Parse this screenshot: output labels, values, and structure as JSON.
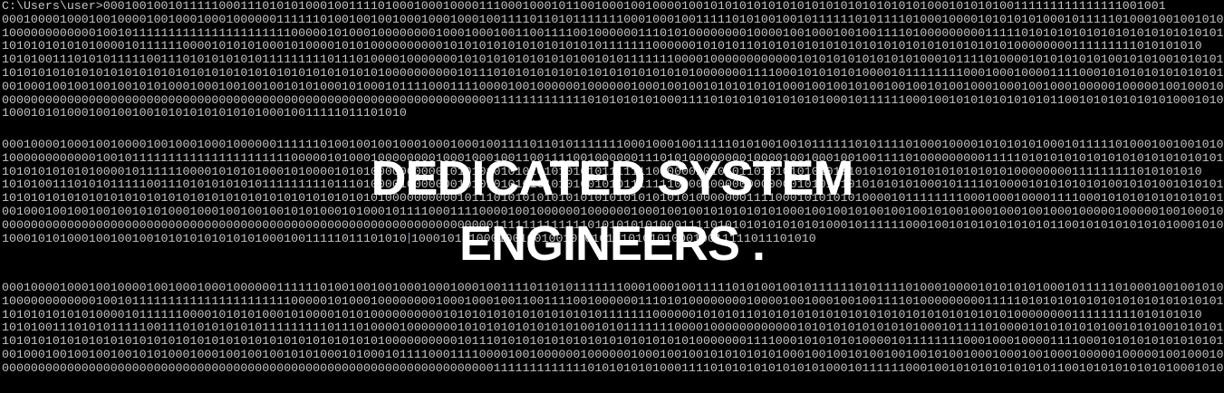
{
  "terminal": {
    "blocks": [
      {
        "lines": [
          "C:\\Users\\user>000100100101111100011101010100010011110100010001000011100010001011001000100100001001010101010101010101010101010101000101010100111111111111111001001",
          "0001000010001001000010010001000100000011111101001001001000100010001001111011010111111100010001001111101010010010111111010111101000100001010101010001011111010001001001010",
          "1000000000000100101111111111111111111111000001010001000000001000100010011001111001000000111010100000000100001001000100100111101000000000111110101010101010101010101010101",
          "1010101010101000010111111000010101010001010000101010000000000101010101010101010101011111110000001010101101010101010101010101010101010101010100000000111111111010101010",
          "1010100111010101111100111010101010101111111110111010000100000001010101010101010100101011111110000100000000000010101010101010101000101111010000101010101010010101001010101",
          "1010101010101010101010101010101010101010101010101010100000000001011101010101010101010101010101010000000111100010101010100001011111111000100010000111100010101010101010101",
          "0010001001001001001010100010001001001001010100010100010111100011110000100100000010000001000100100101010101010001001001010010010010100100010001001000100000100000100100010",
          "0000000000000000000000000000000000000000000000000000000000000000000011111111111110101010101000111101010101010101010001011111100010010101010101010110010101010101010001010010",
          "10001010100010010010010101010101010100010011111011101010"
        ]
      },
      {
        "lines": [
          "0001000010001001000010010001000100000011111101001001001000100010001001111011010111111100010001001111101010010010111111010111101000100001010101010001011111010001001001010",
          "1000000000000100101111111111111111111111000001010001000000001000100010011001111001000000111010100000000100001001000100100111101000000000111110101010101010101010101010101",
          "1010101010101000010111111000010101010001010000101010000000000101010101010101010101011111110000001010101101010101010101010101010101010101010100000000111111111010101010",
          "1010100111010101111100111010101010101111111110111010000100000001010101010101010100101011111110000100000000000010101010101010101000101111010000101010101010010101001010101",
          "1010101010101010101010101010101010101010101010101010100000000001011101010101010101010101010101010000000111100010101010100001011111111000100010000111100010101010101010101",
          "0010001001001001001010100010001001001001010100010100010111100011110000100100000010000001000100100101010101010001001001010010010010100100010001001000100000100000100100010",
          "0000000000000000000000000000000000000000000000000000000000000000000011111111111110101010101000111101010101010101010001011111100010010101010101010110010101010101010001010010",
          "10001010100010010010010101010101010100010011111011101010"
        ],
        "tail": "10001010100010010010010101010101010100010011111011101010"
      },
      {
        "lines": [
          "0001000010001001000010010001000100000011111101001001001000100010001001111011010111111100010001001111101010010010111111010111101000100001010101010001011111010001001001010",
          "1000000000000100101111111111111111111111000001010001000000001000100010011001111001000000111010100000000100001001000100100111101000000000111110101010101010101010101010101",
          "1010101010101000010111111000010101010001010000101010000000000101010101010101010101011111110000001010101101010101010101010101010101010101010100000000111111111010101010",
          "1010100111010101111100111010101010101111111110111010000100000001010101010101010100101011111110000100000000000010101010101010101000101111010000101010101010010101001010101",
          "1010101010101010101010101010101010101010101010101010100000000001011101010101010101010101010101010000000111100010101010100001011111111000100010000111100010101010101010101",
          "0010001001001001001010100010001001001001010100010100010111100011110000100100000010000001000100100101010101010001001001010010010010100100010001001000100000100000100100010",
          "0000000000000000000000000000000000000000000000000000000000000000000011111111111110101010101000111101010101010101010001011111100010010101010101010110010101010101010001010010"
        ]
      }
    ]
  },
  "overlay": {
    "line1": "DEDICATED SYSTEM",
    "line2": "ENGINEERS ."
  }
}
